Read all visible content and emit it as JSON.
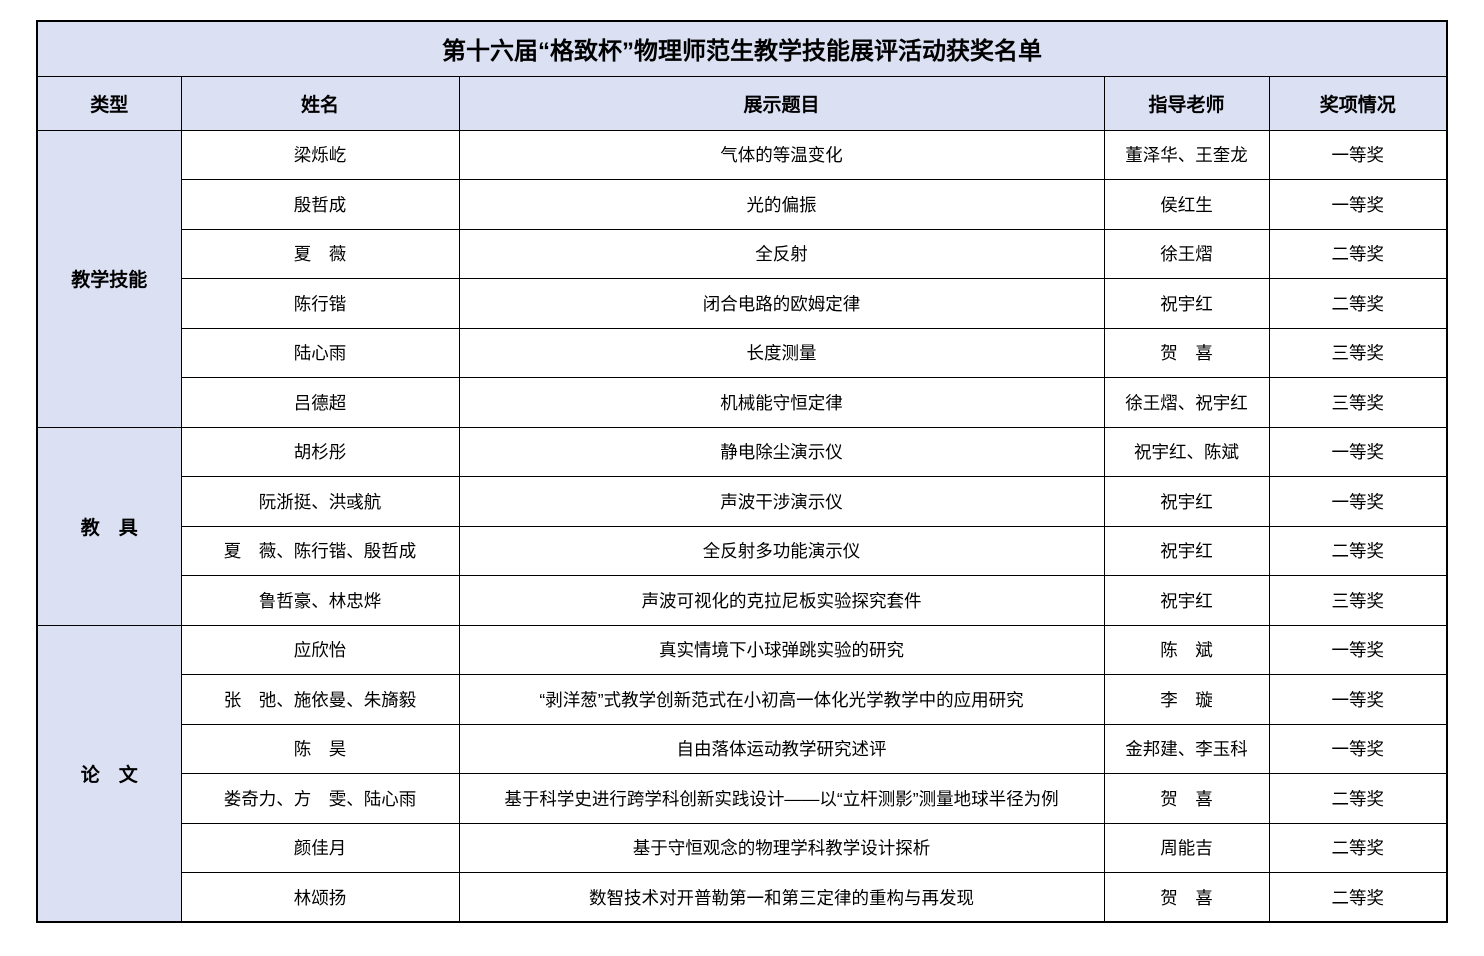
{
  "title": "第十六届“格致杯”物理师范生教学技能展评活动获奖名单",
  "columns": [
    "类型",
    "姓名",
    "展示题目",
    "指导老师",
    "奖项情况"
  ],
  "column_keys": [
    "name",
    "topic",
    "advisor",
    "award"
  ],
  "sections": [
    {
      "type": "教学技能",
      "rows": [
        {
          "name": "梁烁屹",
          "topic": "气体的等温变化",
          "advisor": "董泽华、王奎龙",
          "award": "一等奖"
        },
        {
          "name": "殷哲成",
          "topic": "光的偏振",
          "advisor": "侯红生",
          "award": "一等奖"
        },
        {
          "name": "夏　薇",
          "topic": "全反射",
          "advisor": "徐王熠",
          "award": "二等奖"
        },
        {
          "name": "陈行锴",
          "topic": "闭合电路的欧姆定律",
          "advisor": "祝宇红",
          "award": "二等奖"
        },
        {
          "name": "陆心雨",
          "topic": "长度测量",
          "advisor": "贺　喜",
          "award": "三等奖"
        },
        {
          "name": "吕德超",
          "topic": "机械能守恒定律",
          "advisor": "徐王熠、祝宇红",
          "award": "三等奖"
        }
      ]
    },
    {
      "type": "教　具",
      "rows": [
        {
          "name": "胡杉彤",
          "topic": "静电除尘演示仪",
          "advisor": "祝宇红、陈斌",
          "award": "一等奖"
        },
        {
          "name": "阮浙挺、洪彧航",
          "topic": "声波干涉演示仪",
          "advisor": "祝宇红",
          "award": "一等奖"
        },
        {
          "name": "夏　薇、陈行锴、殷哲成",
          "topic": "全反射多功能演示仪",
          "advisor": "祝宇红",
          "award": "二等奖"
        },
        {
          "name": "鲁哲豪、林忠烨",
          "topic": "声波可视化的克拉尼板实验探究套件",
          "advisor": "祝宇红",
          "award": "三等奖"
        }
      ]
    },
    {
      "type": "论　文",
      "rows": [
        {
          "name": "应欣怡",
          "topic": "真实情境下小球弹跳实验的研究",
          "advisor": "陈　斌",
          "award": "一等奖"
        },
        {
          "name": "张　弛、施依曼、朱旖毅",
          "topic": "“剥洋葱”式教学创新范式在小初高一体化光学教学中的应用研究",
          "advisor": "李　璇",
          "award": "一等奖"
        },
        {
          "name": "陈　昊",
          "topic": "自由落体运动教学研究述评",
          "advisor": "金邦建、李玉科",
          "award": "一等奖"
        },
        {
          "name": "娄奇力、方　雯、陆心雨",
          "topic": "基于科学史进行跨学科创新实践设计——以“立杆测影”测量地球半径为例",
          "advisor": "贺　喜",
          "award": "二等奖"
        },
        {
          "name": "颜佳月",
          "topic": "基于守恒观念的物理学科教学设计探析",
          "advisor": "周能吉",
          "award": "二等奖"
        },
        {
          "name": "林颂扬",
          "topic": "数智技术对开普勒第一和第三定律的重构与再发现",
          "advisor": "贺　喜",
          "award": "二等奖"
        }
      ]
    }
  ],
  "colors": {
    "header_bg": "#dbe1f3",
    "cell_bg": "#ffffff",
    "border": "#000000",
    "text": "#000000"
  }
}
